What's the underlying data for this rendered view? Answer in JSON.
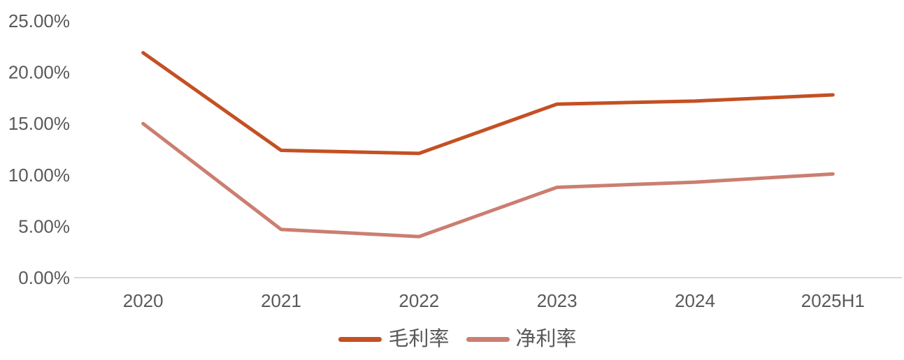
{
  "chart_data": {
    "type": "line",
    "title": "",
    "categories": [
      "2020",
      "2021",
      "2022",
      "2023",
      "2024",
      "2025H1"
    ],
    "series": [
      {
        "name": "毛利率",
        "color": "#C45023",
        "values": [
          21.9,
          12.4,
          12.1,
          16.9,
          17.2,
          17.8
        ]
      },
      {
        "name": "净利率",
        "color": "#CB7E71",
        "values": [
          15.0,
          4.7,
          4.0,
          8.8,
          9.3,
          10.1
        ]
      }
    ],
    "values_unit": "%",
    "ylim": [
      0,
      25
    ],
    "y_tick_step": 5,
    "y_tick_labels": [
      "0.00%",
      "5.00%",
      "10.00%",
      "15.00%",
      "20.00%",
      "25.00%"
    ],
    "xlabel": "",
    "ylabel": "",
    "grid": false,
    "legend_position": "bottom",
    "axis_color": "#D9D9D9",
    "label_color": "#595959"
  }
}
